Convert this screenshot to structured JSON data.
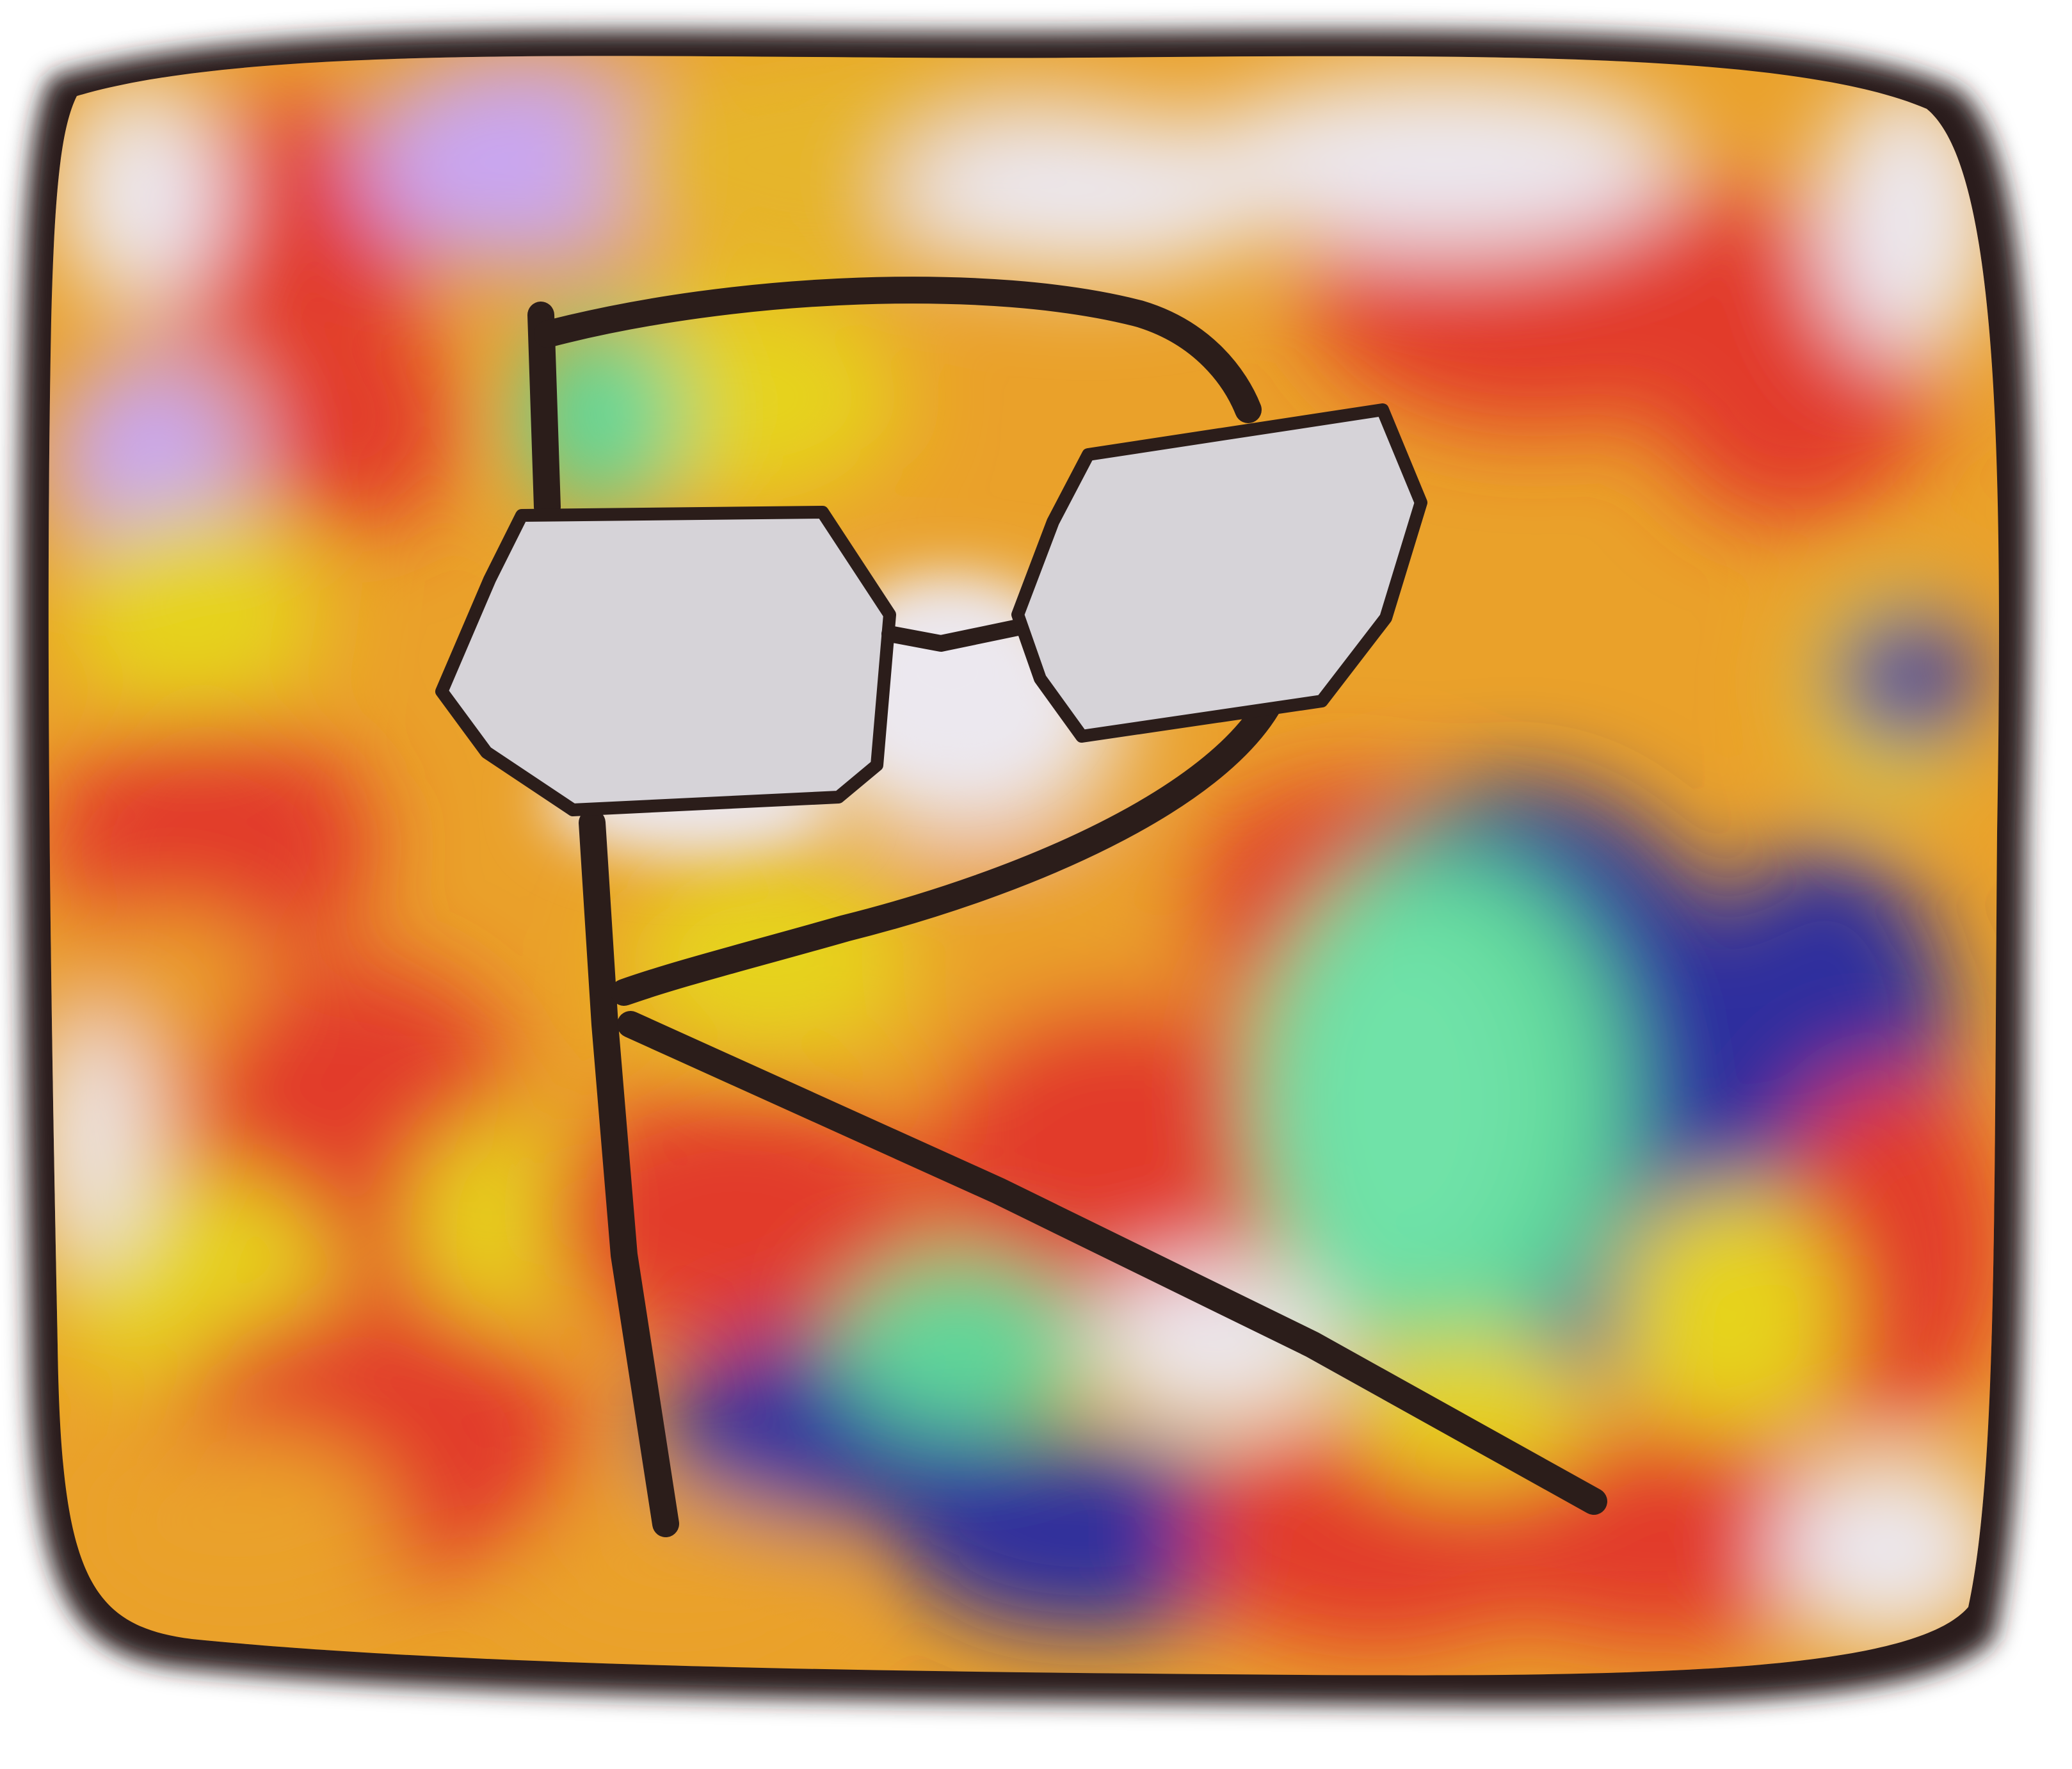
{
  "drawing": {
    "subject": "letter-r-with-glasses",
    "palette": {
      "outline": "#2b1d1a",
      "lens_fill": "#d6d3d8",
      "red": "#e23a2c",
      "orange": "#eaa12a",
      "yellow": "#e6d31f",
      "lavender": "#c9a6f0",
      "blue": "#2f2f9e",
      "green": "#5fd79a",
      "light": "#ece8ef"
    },
    "icons": [
      "glasses-icon",
      "letter-r-icon"
    ]
  }
}
